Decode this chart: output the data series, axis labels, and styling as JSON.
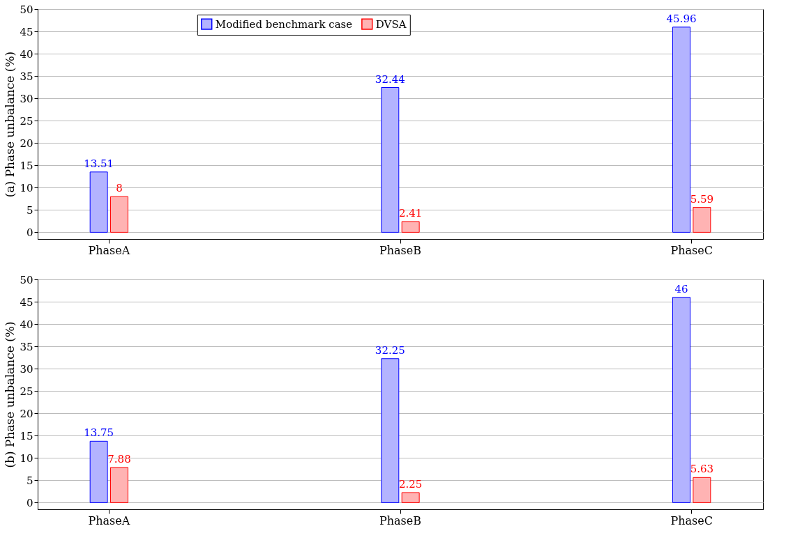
{
  "chart_data": [
    {
      "type": "bar",
      "ylabel": "(a) Phase unbalance (%)",
      "categories": [
        "PhaseA",
        "PhaseB",
        "PhaseC"
      ],
      "series": [
        {
          "name": "Modified benchmark case",
          "color": "#b3b3ff",
          "values": [
            13.51,
            32.44,
            45.96
          ]
        },
        {
          "name": "DVSA",
          "color": "#ffb3b3",
          "values": [
            8,
            2.41,
            5.59
          ]
        }
      ],
      "ylim": [
        -1.5,
        50
      ],
      "yticks": [
        0,
        5,
        10,
        15,
        20,
        25,
        30,
        35,
        40,
        45,
        50
      ],
      "grid": "y",
      "legend": "top",
      "data_labels": true
    },
    {
      "type": "bar",
      "ylabel": "(b) Phase unbalance (%)",
      "categories": [
        "PhaseA",
        "PhaseB",
        "PhaseC"
      ],
      "series": [
        {
          "name": "Modified benchmark case",
          "color": "#b3b3ff",
          "values": [
            13.75,
            32.25,
            46
          ]
        },
        {
          "name": "DVSA",
          "color": "#ffb3b3",
          "values": [
            7.88,
            2.25,
            5.63
          ]
        }
      ],
      "ylim": [
        -1.5,
        50
      ],
      "yticks": [
        0,
        5,
        10,
        15,
        20,
        25,
        30,
        35,
        40,
        45,
        50
      ],
      "grid": "y",
      "legend": false,
      "data_labels": true
    }
  ]
}
